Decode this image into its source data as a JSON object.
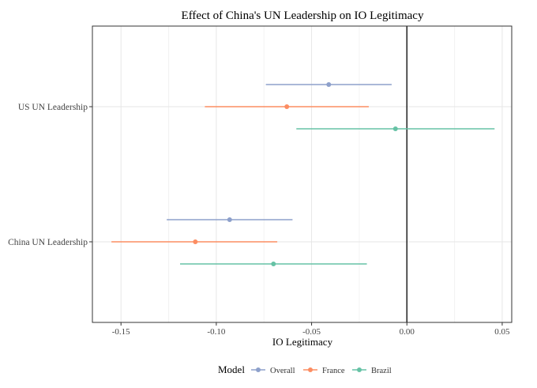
{
  "chart_data": {
    "type": "scatter",
    "subtype": "coefficient-plot",
    "title": "Effect of China's UN Leadership on IO Legitimacy",
    "xlabel": "IO Legitimacy",
    "ylabel": "",
    "xlim": [
      -0.165,
      0.055
    ],
    "xticks": [
      -0.15,
      -0.1,
      -0.05,
      0.0,
      0.05
    ],
    "xtick_labels": [
      "-0.15",
      "-0.10",
      "-0.05",
      "0.00",
      "0.05"
    ],
    "categories": [
      "US UN Leadership",
      "China UN Leadership"
    ],
    "grid": true,
    "reference_line": 0,
    "legend": {
      "title": "Model",
      "position": "bottom"
    },
    "series": [
      {
        "name": "Overall",
        "color": "#8DA0CB",
        "estimates": [
          -0.041,
          -0.093
        ],
        "lower": [
          -0.074,
          -0.126
        ],
        "upper": [
          -0.008,
          -0.06
        ]
      },
      {
        "name": "France",
        "color": "#FC8D62",
        "estimates": [
          -0.063,
          -0.111
        ],
        "lower": [
          -0.106,
          -0.155
        ],
        "upper": [
          -0.02,
          -0.068
        ]
      },
      {
        "name": "Brazil",
        "color": "#66C2A5",
        "estimates": [
          -0.006,
          -0.07
        ],
        "lower": [
          -0.058,
          -0.119
        ],
        "upper": [
          0.046,
          -0.021
        ]
      }
    ]
  }
}
